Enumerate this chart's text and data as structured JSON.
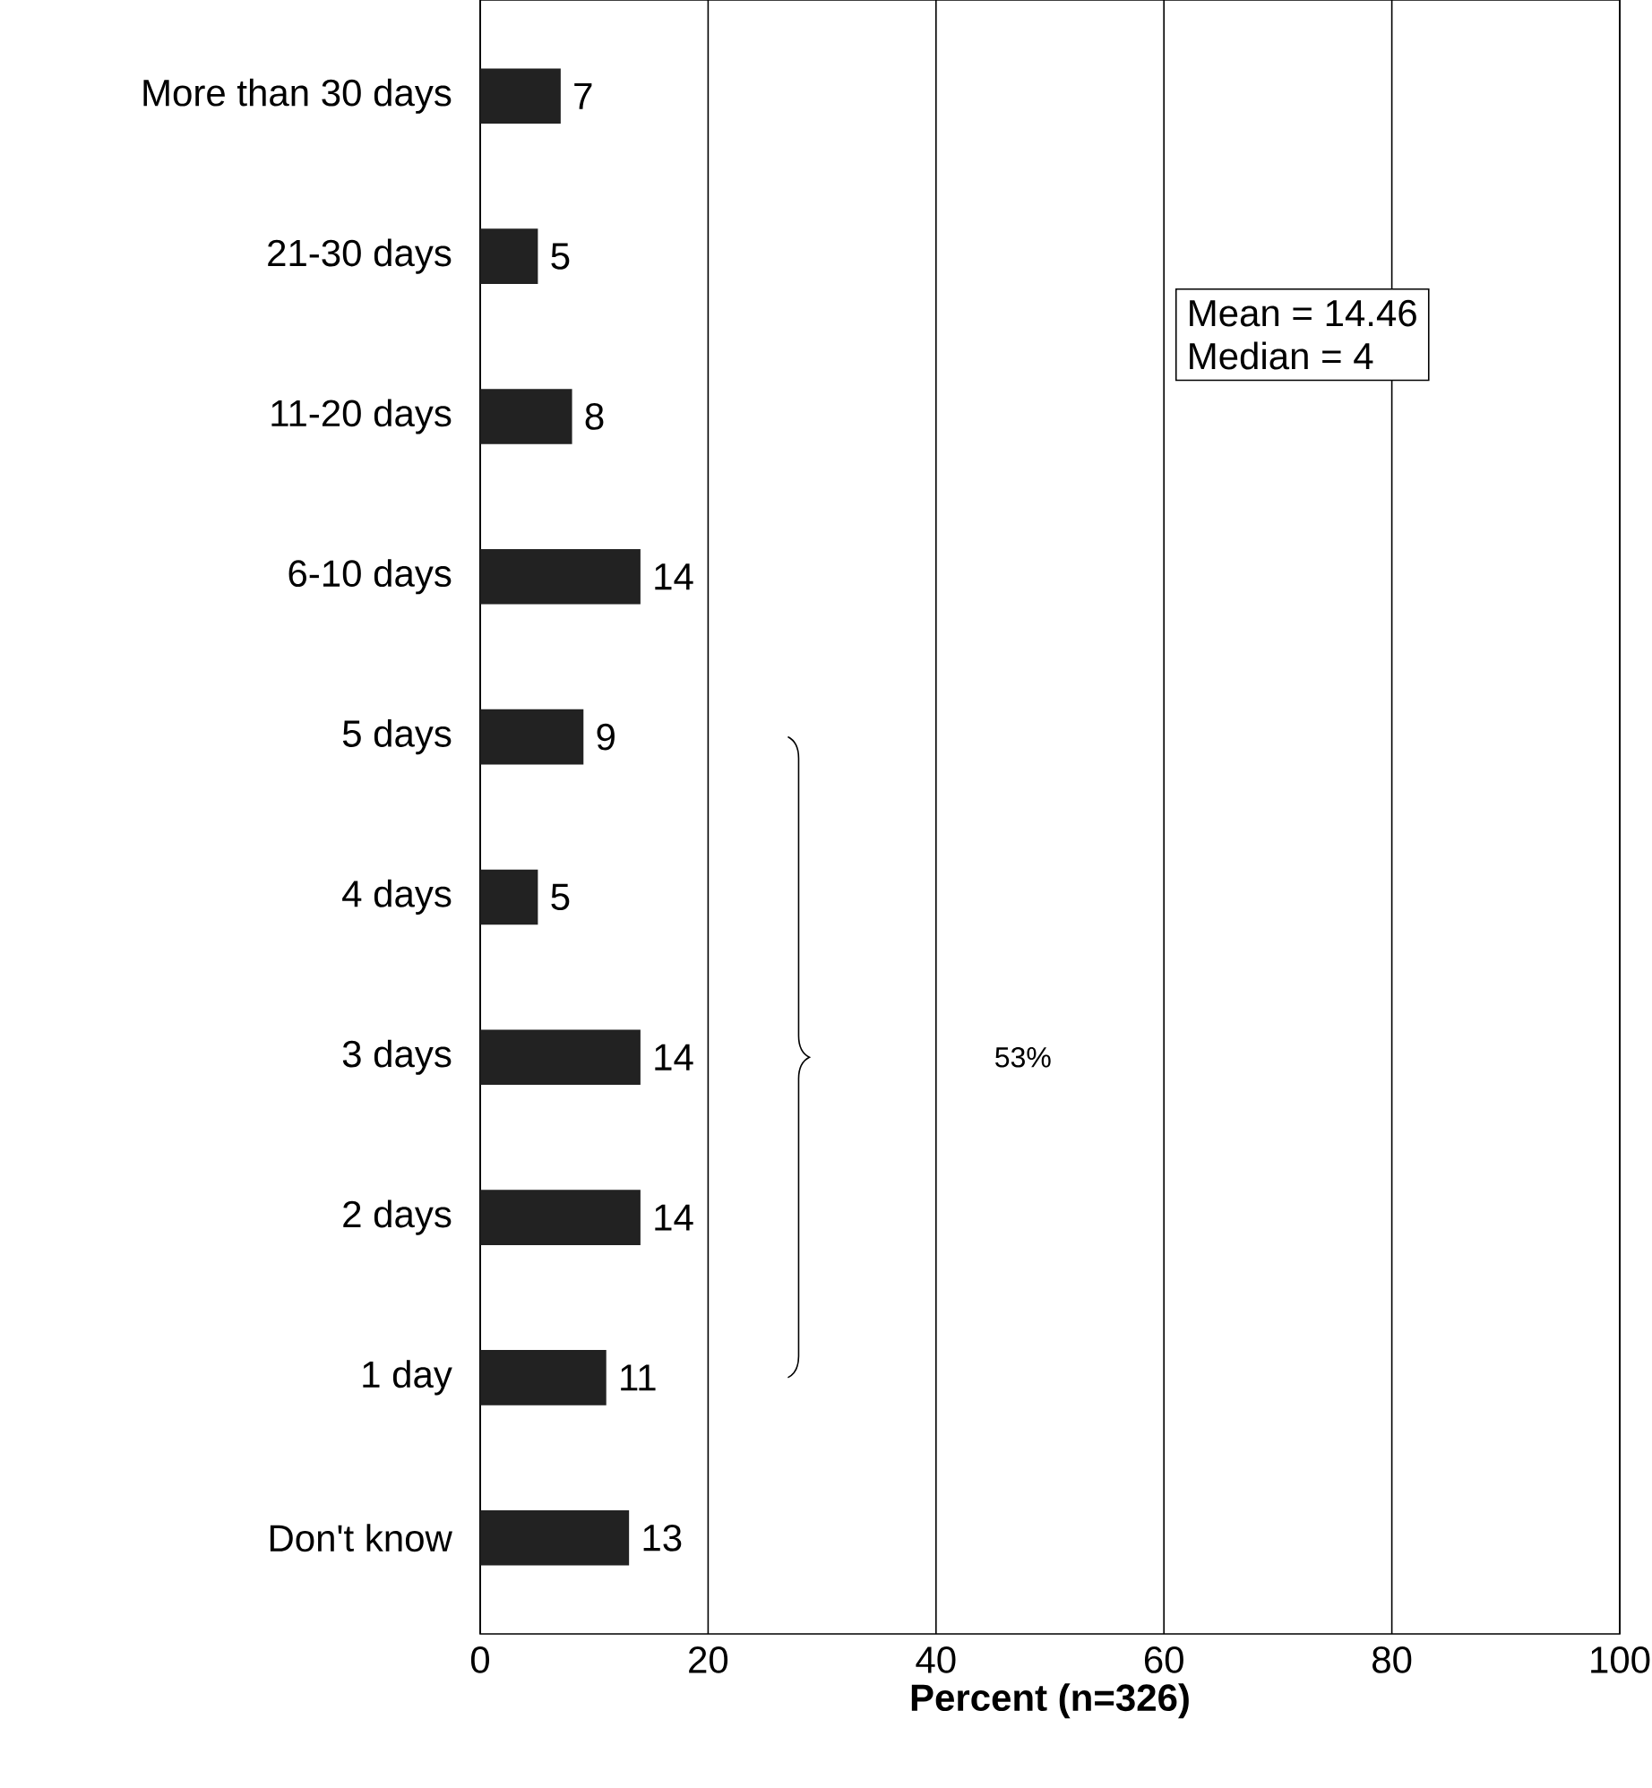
{
  "chart_data": {
    "type": "bar",
    "orientation": "horizontal",
    "categories": [
      "More than 30 days",
      "21-30 days",
      "11-20 days",
      "6-10 days",
      "5 days",
      "4 days",
      "3 days",
      "2 days",
      "1 day",
      "Don't know"
    ],
    "values": [
      7,
      5,
      8,
      14,
      9,
      5,
      14,
      14,
      11,
      13
    ],
    "color": "#222222",
    "data_labels": true,
    "xlim": [
      0,
      100
    ],
    "xticks": [
      0,
      20,
      40,
      60,
      80,
      100
    ],
    "grid": "x",
    "xlabel": "**Percent (n=326)**",
    "annotations": [
      "Mean = 14.46",
      "Median = 4",
      "53%"
    ]
  }
}
